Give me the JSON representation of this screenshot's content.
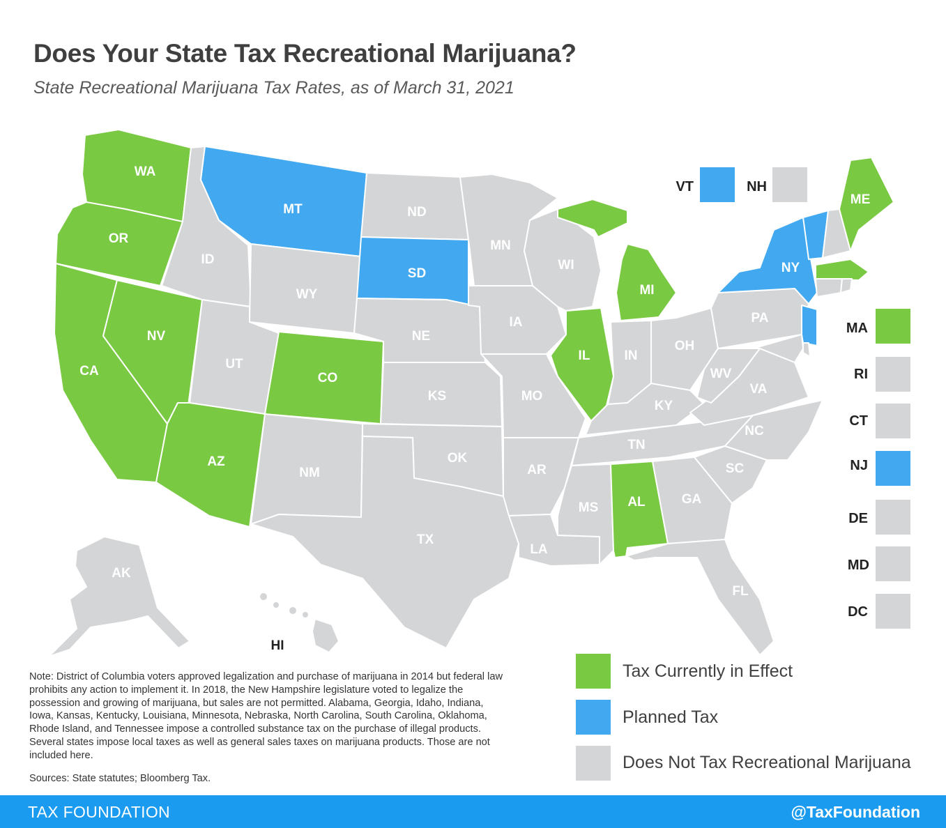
{
  "title": "Does Your State Tax Recreational Marijuana?",
  "subtitle": "State Recreational Marijuana Tax Rates, as of March 31, 2021",
  "colors": {
    "tax_in_effect": "#79c942",
    "planned": "#42a8f0",
    "no_tax": "#d4d5d7",
    "footer": "#1a9bf0"
  },
  "states": {
    "WA": "tax_in_effect",
    "OR": "tax_in_effect",
    "CA": "tax_in_effect",
    "NV": "tax_in_effect",
    "AZ": "tax_in_effect",
    "CO": "tax_in_effect",
    "IL": "tax_in_effect",
    "MI": "tax_in_effect",
    "ME": "tax_in_effect",
    "MA": "tax_in_effect",
    "AL": "tax_in_effect",
    "MT": "planned",
    "SD": "planned",
    "NY": "planned",
    "VT": "planned",
    "NJ": "planned",
    "ID": "no_tax",
    "WY": "no_tax",
    "UT": "no_tax",
    "NM": "no_tax",
    "ND": "no_tax",
    "NE": "no_tax",
    "KS": "no_tax",
    "OK": "no_tax",
    "TX": "no_tax",
    "MN": "no_tax",
    "IA": "no_tax",
    "MO": "no_tax",
    "AR": "no_tax",
    "LA": "no_tax",
    "WI": "no_tax",
    "IN": "no_tax",
    "OH": "no_tax",
    "KY": "no_tax",
    "TN": "no_tax",
    "MS": "no_tax",
    "GA": "no_tax",
    "FL": "no_tax",
    "SC": "no_tax",
    "NC": "no_tax",
    "VA": "no_tax",
    "WV": "no_tax",
    "PA": "no_tax",
    "NH": "no_tax",
    "RI": "no_tax",
    "CT": "no_tax",
    "DE": "no_tax",
    "MD": "no_tax",
    "DC": "no_tax",
    "AK": "no_tax",
    "HI": "no_tax"
  },
  "small_states": [
    {
      "code": "VT",
      "label": "VT"
    },
    {
      "code": "NH",
      "label": "NH"
    },
    {
      "code": "MA",
      "label": "MA"
    },
    {
      "code": "RI",
      "label": "RI"
    },
    {
      "code": "CT",
      "label": "CT"
    },
    {
      "code": "NJ",
      "label": "NJ"
    },
    {
      "code": "DE",
      "label": "DE"
    },
    {
      "code": "MD",
      "label": "MD"
    },
    {
      "code": "DC",
      "label": "DC"
    }
  ],
  "legend": [
    {
      "key": "tax_in_effect",
      "label": "Tax Currently in Effect"
    },
    {
      "key": "planned",
      "label": "Planned Tax"
    },
    {
      "key": "no_tax",
      "label": "Does Not Tax Recreational Marijuana"
    }
  ],
  "note": "Note: District of Columbia voters approved legalization and purchase of marijuana in 2014 but federal law prohibits any action to implement it. In 2018, the New Hampshire legislature voted to legalize the possession and growing of marijuana, but sales are not permitted. Alabama, Georgia, Idaho, Indiana, Iowa, Kansas, Kentucky, Louisiana, Minnesota, Nebraska, North Carolina, South Carolina, Oklahoma, Rhode Island, and Tennessee impose a controlled substance tax on the purchase of illegal products. Several states impose local taxes as well as general sales taxes on marijuana products. Those are not included here.",
  "sources": "Sources: State statutes; Bloomberg Tax.",
  "footer": {
    "left": "TAX FOUNDATION",
    "right": "@TaxFoundation"
  }
}
